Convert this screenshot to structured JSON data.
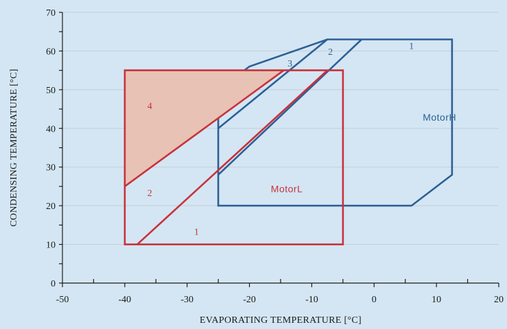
{
  "chart_data": {
    "type": "area",
    "xlabel": "EVAPORATING TEMPERATURE  [°C]",
    "ylabel": "CONDENSING TEMPERATURE  [°C]",
    "xlim": [
      -50,
      20
    ],
    "ylim": [
      0,
      70
    ],
    "xticks": [
      "-50",
      "-40",
      "-30",
      "-20",
      "-10",
      "0",
      "10",
      "20"
    ],
    "yticks": [
      "0",
      "10",
      "20",
      "30",
      "40",
      "50",
      "60",
      "70"
    ],
    "grid": "horizontal",
    "colors": {
      "motorH": "#2d5f96",
      "motorL": "#c8323c",
      "fill4": "#e8c2b4",
      "grid": "#c4cdd4"
    },
    "series": [
      {
        "name": "MotorH",
        "label": "MotorH",
        "label_pos": [
          10.5,
          42
        ],
        "outline": [
          [
            -25,
            20
          ],
          [
            6,
            20
          ],
          [
            12.5,
            28
          ],
          [
            12.5,
            63
          ],
          [
            -7.5,
            63
          ],
          [
            -20,
            56
          ],
          [
            -25,
            50
          ]
        ],
        "dividers": [
          [
            [
              -25,
              40
            ],
            [
              -7.5,
              63
            ]
          ],
          [
            [
              -25,
              28
            ],
            [
              -2,
              63
            ]
          ]
        ],
        "regions": [
          {
            "label": "1",
            "at": [
              6,
              60.5
            ]
          },
          {
            "label": "2",
            "at": [
              -7,
              59
            ]
          },
          {
            "label": "3",
            "at": [
              -13.5,
              56
            ]
          }
        ]
      },
      {
        "name": "MotorL",
        "label": "MotorL",
        "label_pos": [
          -14,
          23.5
        ],
        "outline": [
          [
            -40,
            10
          ],
          [
            -5,
            10
          ],
          [
            -5,
            55
          ],
          [
            -40,
            55
          ]
        ],
        "dividers": [
          [
            [
              -40,
              25
            ],
            [
              -14.5,
              55
            ]
          ],
          [
            [
              -38,
              10
            ],
            [
              -7.5,
              55
            ]
          ]
        ],
        "shaded": [
          [
            -40,
            25
          ],
          [
            -14.5,
            55
          ],
          [
            -40,
            55
          ]
        ],
        "regions": [
          {
            "label": "4",
            "at": [
              -36,
              45
            ]
          },
          {
            "label": "2",
            "at": [
              -36,
              22.5
            ]
          },
          {
            "label": "1",
            "at": [
              -28.5,
              12.5
            ]
          }
        ]
      }
    ]
  }
}
